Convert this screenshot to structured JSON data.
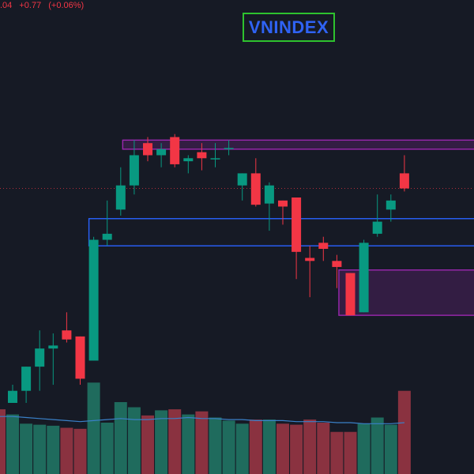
{
  "legend": {
    "value": ".04",
    "change": "+0.77",
    "change_pct": "(+0.06%)"
  },
  "title": "VNINDEX",
  "colors": {
    "background": "#161a25",
    "up": "#089981",
    "down": "#f23645",
    "vol_up": "#1f6b5d",
    "vol_down": "#8a3240",
    "volume_ma": "#3a80c8",
    "zone_blue": "#2962ff",
    "zone_purple": "#9c27b0",
    "last_price_line": "#f23645",
    "title_border": "#2ec22e",
    "title_text": "#2f63f4"
  },
  "chart_data": {
    "type": "candlestick",
    "title": "VNINDEX",
    "y_range": [
      1186,
      1237
    ],
    "volume_range": [
      0,
      100
    ],
    "last_price": 1221.5,
    "candles": [
      {
        "o": 1186,
        "h": 1189,
        "l": 1186,
        "c": 1188
      },
      {
        "o": 1188,
        "h": 1192,
        "l": 1186,
        "c": 1192
      },
      {
        "o": 1192,
        "h": 1198,
        "l": 1188,
        "c": 1195
      },
      {
        "o": 1195,
        "h": 1197.5,
        "l": 1189,
        "c": 1195.5
      },
      {
        "o": 1198,
        "h": 1201,
        "l": 1196,
        "c": 1196.5
      },
      {
        "o": 1197,
        "h": 1197,
        "l": 1189,
        "c": 1190
      },
      {
        "o": 1193,
        "h": 1213.5,
        "l": 1193,
        "c": 1213
      },
      {
        "o": 1213,
        "h": 1219.5,
        "l": 1212,
        "c": 1214
      },
      {
        "o": 1218,
        "h": 1225,
        "l": 1217,
        "c": 1222
      },
      {
        "o": 1222,
        "h": 1229.5,
        "l": 1220.5,
        "c": 1227
      },
      {
        "o": 1229,
        "h": 1230,
        "l": 1226,
        "c": 1227
      },
      {
        "o": 1227,
        "h": 1229,
        "l": 1225,
        "c": 1228
      },
      {
        "o": 1230,
        "h": 1230.5,
        "l": 1225,
        "c": 1225.5
      },
      {
        "o": 1226,
        "h": 1227,
        "l": 1224,
        "c": 1226.5
      },
      {
        "o": 1227.5,
        "h": 1229,
        "l": 1224.5,
        "c": 1226.5
      },
      {
        "o": 1226.5,
        "h": 1229,
        "l": 1225,
        "c": 1226.5
      },
      {
        "o": 1228,
        "h": 1229.5,
        "l": 1227,
        "c": 1228.2
      },
      {
        "o": 1222,
        "h": 1224,
        "l": 1219.5,
        "c": 1224
      },
      {
        "o": 1224,
        "h": 1226.5,
        "l": 1218.5,
        "c": 1218.8
      },
      {
        "o": 1219,
        "h": 1222.5,
        "l": 1214.5,
        "c": 1222
      },
      {
        "o": 1219.5,
        "h": 1219.5,
        "l": 1215.5,
        "c": 1218.5
      },
      {
        "o": 1220,
        "h": 1220,
        "l": 1206.5,
        "c": 1211
      },
      {
        "o": 1210,
        "h": 1212,
        "l": 1203.5,
        "c": 1209.5
      },
      {
        "o": 1212.5,
        "h": 1213.5,
        "l": 1209.5,
        "c": 1211.5
      },
      {
        "o": 1209.5,
        "h": 1210.5,
        "l": 1205,
        "c": 1208.5
      },
      {
        "o": 1207.5,
        "h": 1207.5,
        "l": 1200.5,
        "c": 1200.5
      },
      {
        "o": 1201,
        "h": 1213,
        "l": 1201,
        "c": 1212.5
      },
      {
        "o": 1214,
        "h": 1220.5,
        "l": 1213.5,
        "c": 1216
      },
      {
        "o": 1218,
        "h": 1220.5,
        "l": 1216,
        "c": 1219.5
      },
      {
        "o": 1224,
        "h": 1227,
        "l": 1221,
        "c": 1221.5
      }
    ],
    "volume": [
      58,
      49,
      48,
      47,
      45,
      44,
      89,
      50,
      70,
      65,
      57,
      62,
      63,
      58,
      61,
      55,
      52,
      49,
      53,
      53,
      49,
      48,
      53,
      50,
      41,
      41,
      49,
      55,
      48,
      81
    ],
    "volume_ma": [
      56,
      55,
      54,
      53,
      52,
      51,
      52,
      53,
      54,
      53,
      53,
      54,
      54,
      55,
      54,
      54,
      53,
      53,
      52,
      52,
      52,
      51,
      51,
      51,
      50,
      50,
      49,
      49,
      49,
      50
    ],
    "zones": [
      {
        "name": "purple-top-zone",
        "from_index": 8.5,
        "top": 1229.5,
        "bottom": 1228,
        "color": "purple"
      },
      {
        "name": "blue-zone",
        "from_index": 6,
        "top": 1216.5,
        "bottom": 1212,
        "color": "blue"
      },
      {
        "name": "purple-bottom-zone",
        "from_index": 24.5,
        "top": 1208,
        "bottom": 1200.5,
        "color": "purple"
      }
    ]
  }
}
